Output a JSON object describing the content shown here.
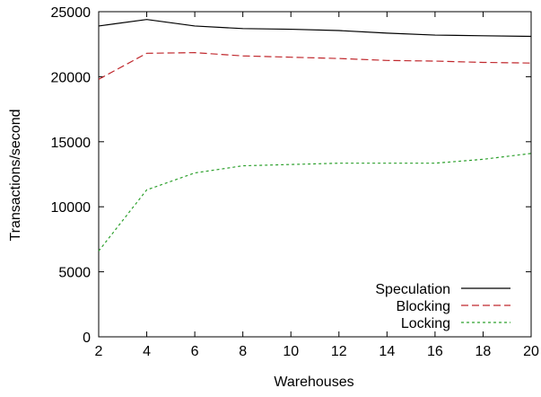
{
  "chart_data": {
    "type": "line",
    "title": "",
    "xlabel": "Warehouses",
    "ylabel": "Transactions/second",
    "x": [
      2,
      4,
      6,
      8,
      10,
      12,
      14,
      16,
      18,
      20
    ],
    "xlim": [
      2,
      20
    ],
    "ylim": [
      0,
      25000
    ],
    "xticks": [
      2,
      4,
      6,
      8,
      10,
      12,
      14,
      16,
      18,
      20
    ],
    "yticks": [
      0,
      5000,
      10000,
      15000,
      20000,
      25000
    ],
    "grid": false,
    "legend_position": "bottom-right",
    "series": [
      {
        "name": "Speculation",
        "color": "#000000",
        "dash": "solid",
        "values": [
          23900,
          24400,
          23900,
          23700,
          23650,
          23550,
          23350,
          23200,
          23150,
          23100
        ]
      },
      {
        "name": "Blocking",
        "color": "#c0282d",
        "dash": "dashed",
        "values": [
          19800,
          21800,
          21850,
          21600,
          21500,
          21400,
          21250,
          21200,
          21100,
          21050
        ]
      },
      {
        "name": "Locking",
        "color": "#2ca02c",
        "dash": "dotted",
        "values": [
          6600,
          11300,
          12600,
          13150,
          13250,
          13350,
          13350,
          13350,
          13650,
          14100
        ]
      }
    ]
  }
}
